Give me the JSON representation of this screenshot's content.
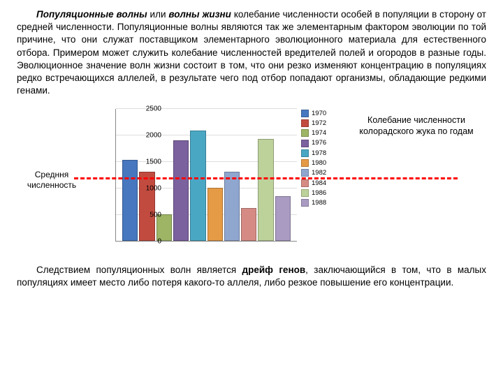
{
  "paragraph1": {
    "lead_bold": "Популяционные волны",
    "mid1": " или ",
    "lead_bold2": "волны жизни",
    "rest": " колебание численности особей в популяции в сторону от средней численности. Популяционные волны являются так же элементарным фактором эволюции по той причине, что они служат поставщиком элементарного эволюционного материала для естественного отбора. Примером может служить колебание численностей вредителей полей и огородов в разные годы. Эволюционное значение волн жизни состоит в том, что они резко изменяют концентрацию в популяциях редко встречающихся аллелей, в результате чего под отбор попадают организмы, обладающие редкими генами."
  },
  "paragraph2": {
    "pre": "Следствием популяционных волн является ",
    "bold": "дрейф генов",
    "post": ", заключающийся в том, что в малых популяциях имеет место либо потеря какого-то аллеля, либо резкое повышение его концентрации."
  },
  "left_label": "Средння численность",
  "right_label": "Колебание численности колорадского жука по годам",
  "chart": {
    "type": "bar",
    "ymax": 2500,
    "ytick_step": 500,
    "yticks": [
      0,
      500,
      1000,
      1500,
      2000,
      2500
    ],
    "mean_line_value": 1200,
    "series": [
      {
        "year": "1970",
        "value": 1530,
        "color": "#4677bf"
      },
      {
        "year": "1972",
        "value": 1300,
        "color": "#c24b3f"
      },
      {
        "year": "1974",
        "value": 500,
        "color": "#9db564"
      },
      {
        "year": "1976",
        "value": 1900,
        "color": "#7b619e"
      },
      {
        "year": "1978",
        "value": 2080,
        "color": "#4aa7c4"
      },
      {
        "year": "1980",
        "value": 1000,
        "color": "#e59a45"
      },
      {
        "year": "1982",
        "value": 1300,
        "color": "#8fa6cf"
      },
      {
        "year": "1984",
        "value": 620,
        "color": "#d58b84"
      },
      {
        "year": "1986",
        "value": 1920,
        "color": "#bdd19a"
      },
      {
        "year": "1988",
        "value": 840,
        "color": "#a99bc2"
      }
    ],
    "background_color": "#ffffff",
    "grid_color": "#dddddd",
    "axis_color": "#888888",
    "label_fontsize": 10,
    "mean_line_color": "#ff0000"
  }
}
